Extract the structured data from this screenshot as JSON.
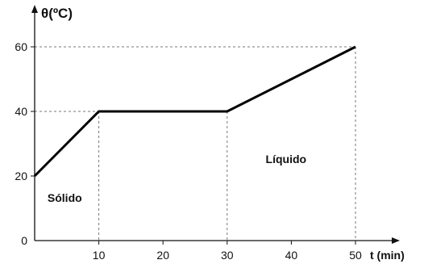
{
  "chart_data": {
    "type": "line",
    "xlabel": "t (min)",
    "ylabel": "θ(ºC)",
    "x_ticks": [
      10,
      20,
      30,
      40,
      50
    ],
    "y_ticks": [
      20,
      40,
      60
    ],
    "origin_label": "0",
    "xlim": [
      0,
      52
    ],
    "ylim": [
      0,
      66
    ],
    "series": [
      {
        "x": [
          0,
          10,
          30,
          50
        ],
        "y": [
          20,
          40,
          40,
          60
        ]
      }
    ],
    "annotations": [
      {
        "text": "Sólido",
        "x": 2,
        "y": 12
      },
      {
        "text": "Líquido",
        "x": 36,
        "y": 24
      }
    ],
    "reference_lines": [
      {
        "x": 10,
        "y": 40
      },
      {
        "x": 30,
        "y": 40
      },
      {
        "x": 50,
        "y": 60
      }
    ]
  }
}
